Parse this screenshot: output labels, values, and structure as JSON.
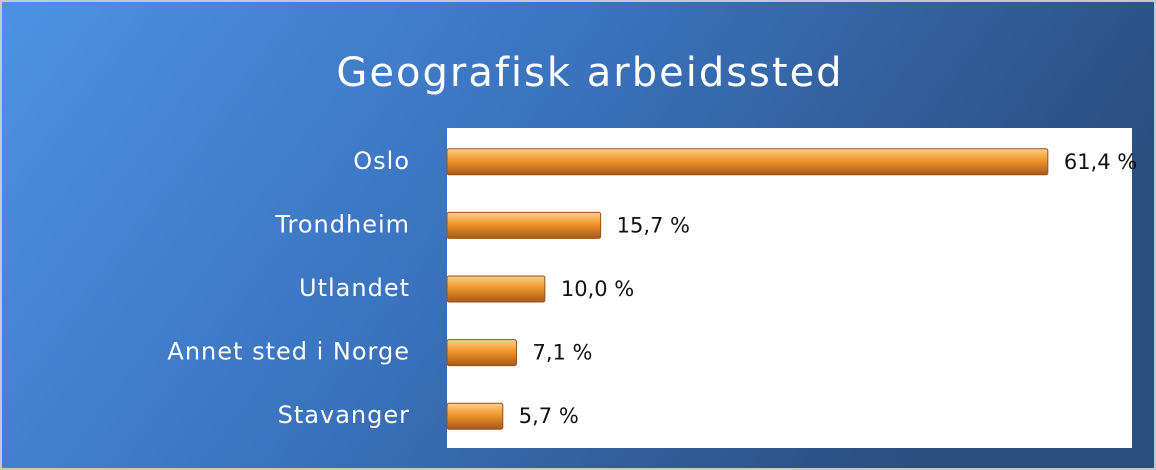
{
  "chart_data": {
    "type": "bar",
    "orientation": "horizontal",
    "title": "Geografisk arbeidssted",
    "categories": [
      "Oslo",
      "Trondheim",
      "Utlandet",
      "Annet sted i Norge",
      "Stavanger"
    ],
    "values": [
      61.4,
      15.7,
      10.0,
      7.1,
      5.7
    ],
    "value_labels": [
      "61,4 %",
      "15,7 %",
      "10,0 %",
      "7,1 %",
      "5,7 %"
    ],
    "color": "#f0962a",
    "xlim": [
      0,
      70
    ]
  }
}
